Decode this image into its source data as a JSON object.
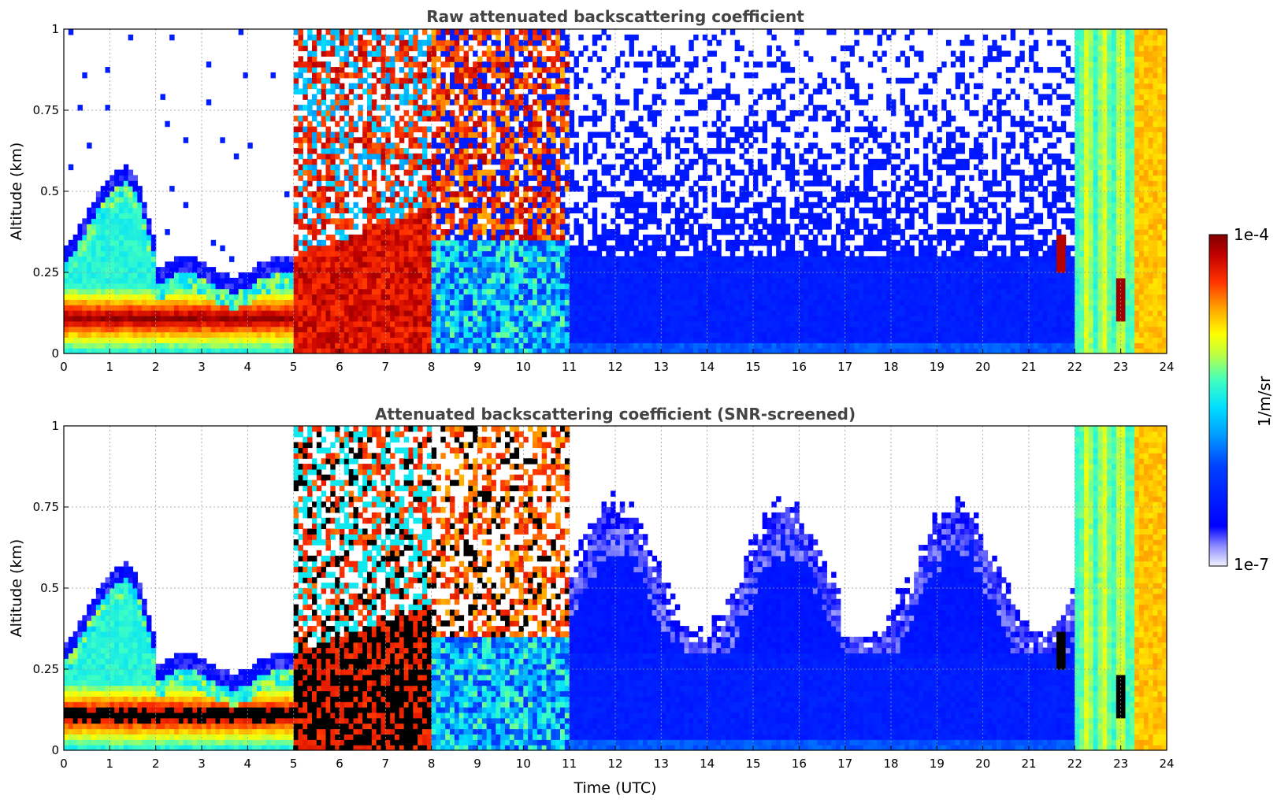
{
  "chart_data": [
    {
      "type": "heatmap",
      "title": "Raw attenuated backscattering coefficient",
      "xlabel": "",
      "ylabel": "Altitude (km)",
      "xlim": [
        0,
        24
      ],
      "ylim": [
        0,
        1
      ],
      "x_ticks": [
        "0",
        "1",
        "2",
        "3",
        "4",
        "5",
        "6",
        "7",
        "8",
        "9",
        "10",
        "11",
        "12",
        "13",
        "14",
        "15",
        "16",
        "17",
        "18",
        "19",
        "20",
        "21",
        "22",
        "23",
        "24"
      ],
      "y_ticks": [
        "0",
        "0.25",
        "0.5",
        "0.75",
        "1"
      ],
      "grid": true,
      "screened": false
    },
    {
      "type": "heatmap",
      "title": "Attenuated backscattering coefficient (SNR-screened)",
      "xlabel": "Time (UTC)",
      "ylabel": "Altitude (km)",
      "xlim": [
        0,
        24
      ],
      "ylim": [
        0,
        1
      ],
      "x_ticks": [
        "0",
        "1",
        "2",
        "3",
        "4",
        "5",
        "6",
        "7",
        "8",
        "9",
        "10",
        "11",
        "12",
        "13",
        "14",
        "15",
        "16",
        "17",
        "18",
        "19",
        "20",
        "21",
        "22",
        "23",
        "24"
      ],
      "y_ticks": [
        "0",
        "0.25",
        "0.5",
        "0.75",
        "1"
      ],
      "grid": true,
      "screened": true
    }
  ],
  "colorbar": {
    "max_label": "1e-4",
    "min_label": "1e-7",
    "label": "1/m/sr",
    "scale": "log",
    "colormap": "jet"
  }
}
